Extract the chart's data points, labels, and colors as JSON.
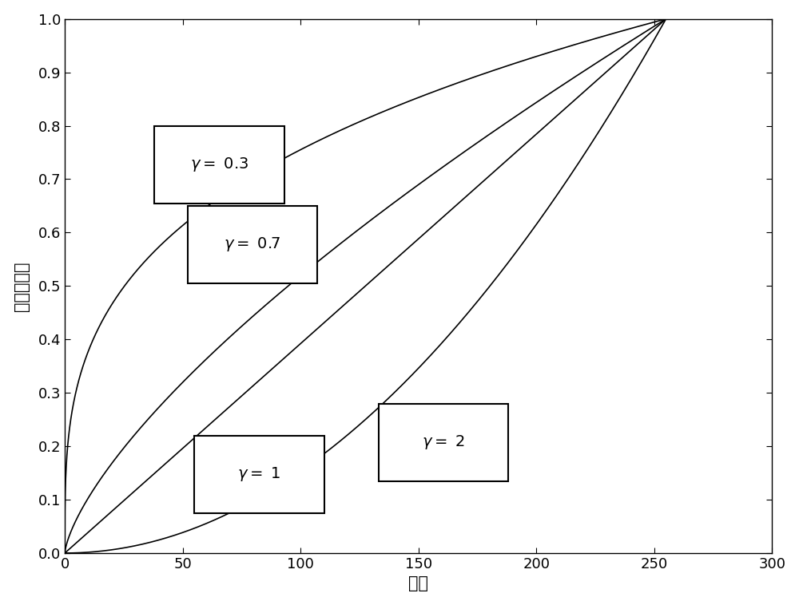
{
  "title": "",
  "xlabel": "频率",
  "ylabel": "归一化幅値",
  "xlim": [
    0,
    300
  ],
  "ylim": [
    0,
    1.0
  ],
  "xticks": [
    0,
    50,
    100,
    150,
    200,
    250,
    300
  ],
  "yticks": [
    0,
    0.1,
    0.2,
    0.3,
    0.4,
    0.5,
    0.6,
    0.7,
    0.8,
    0.9,
    1
  ],
  "x_max": 255,
  "gammas": [
    0.3,
    0.7,
    1,
    2
  ],
  "line_color": "#000000",
  "line_width": 1.2,
  "background_color": "#ffffff",
  "ann_configs": [
    {
      "text": "γ = 0.3",
      "bx": 38,
      "by": 0.655,
      "bw": 55,
      "bh": 0.145
    },
    {
      "text": "γ = 0.7",
      "bx": 52,
      "by": 0.505,
      "bw": 55,
      "bh": 0.145
    },
    {
      "text": "γ = 1",
      "bx": 55,
      "by": 0.075,
      "bw": 55,
      "bh": 0.145
    },
    {
      "text": "γ = 2",
      "bx": 133,
      "by": 0.135,
      "bw": 55,
      "bh": 0.145
    }
  ],
  "figsize": [
    10.0,
    7.58
  ],
  "dpi": 100,
  "font_size_labels": 15,
  "font_size_ticks": 13,
  "font_size_annotations": 14
}
